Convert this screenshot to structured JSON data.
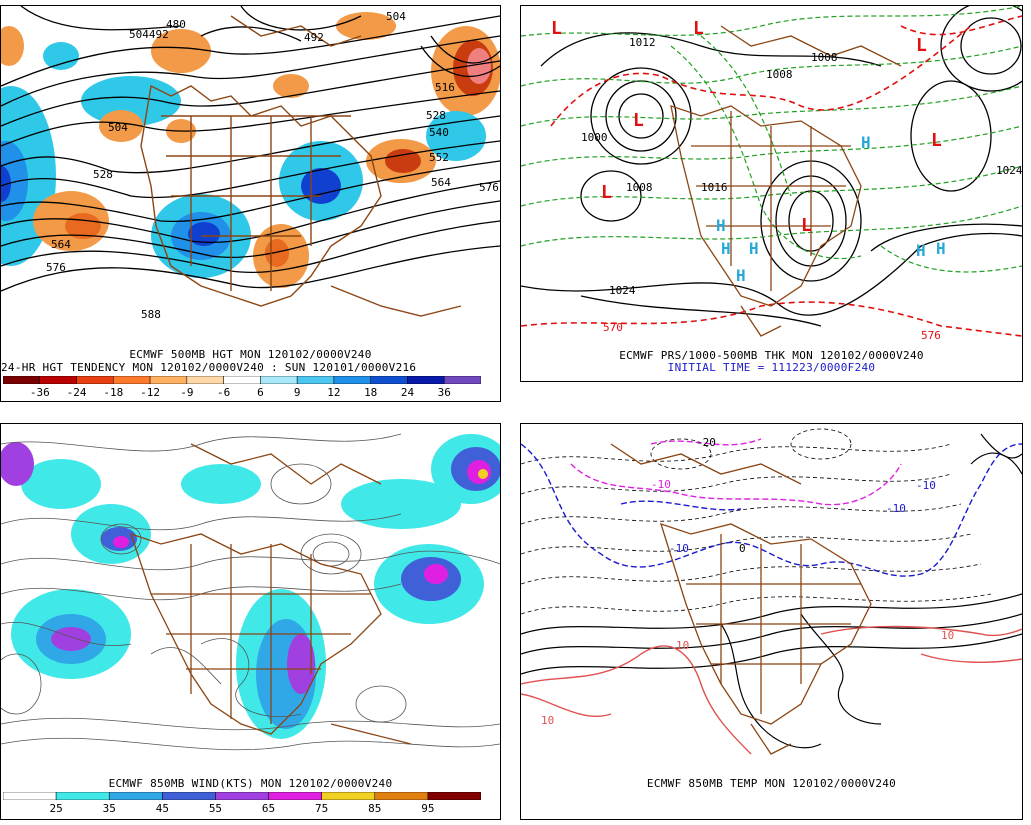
{
  "panels": [
    {
      "id": "p500",
      "captions": [
        "ECMWF 500MB HGT MON 120102/0000V240",
        "24-HR HGT TENDENCY MON 120102/0000V240 : SUN 120101/0000V216"
      ],
      "contour_labels": [
        "504492",
        "480",
        "492",
        "504",
        "516",
        "528",
        "540",
        "552",
        "564",
        "576",
        "588",
        "528",
        "564",
        "504",
        "576"
      ],
      "scale_labels": [
        "-36",
        "-24",
        "-18",
        "-12",
        "-9",
        "-6",
        "6",
        "9",
        "12",
        "18",
        "24",
        "36"
      ],
      "scale_colors": [
        "#7a0000",
        "#b80000",
        "#e84010",
        "#ff7a2c",
        "#ffb060",
        "#ffd8a8",
        "#ffffff",
        "#a8e8f8",
        "#4cc8f0",
        "#2090e8",
        "#1050d0",
        "#0818a8",
        "#7048c0"
      ],
      "colors": {
        "warm": "#f29a48",
        "warm_dark": "#c83c10",
        "cool": "#30c8e8",
        "cool_dark": "#1040d0",
        "contour": "#000000",
        "coast": "#8b4513"
      }
    },
    {
      "id": "pprs",
      "captions": [
        "ECMWF PRS/1000-500MB THK MON 120102/0000V240"
      ],
      "initial": "INITIAL TIME = 111223/0000F240",
      "labels": [
        "1012",
        "1008",
        "1000",
        "1008",
        "1016",
        "1024",
        "570",
        "1024",
        "1008",
        "576"
      ],
      "highs": [
        "H",
        "H",
        "H",
        "H",
        "H",
        "H",
        "H"
      ],
      "lows": [
        "L",
        "L",
        "L",
        "L",
        "L",
        "L",
        "L"
      ],
      "colors": {
        "high": "#28a8d8",
        "low": "#e01010",
        "thickness": "#22a022",
        "isobar": "#000000",
        "thk_red": "#e01010"
      }
    },
    {
      "id": "pwind",
      "captions": [
        "ECMWF 850MB WIND(KTS) MON 120102/0000V240"
      ],
      "scale_labels": [
        "25",
        "35",
        "45",
        "55",
        "65",
        "75",
        "85",
        "95"
      ],
      "scale_colors": [
        "#ffffff",
        "#40e8e8",
        "#30a8e8",
        "#4060d8",
        "#a040e0",
        "#e020e0",
        "#f0d020",
        "#e08010",
        "#800000"
      ],
      "colors": {
        "streamline": "#444444"
      }
    },
    {
      "id": "ptemp",
      "captions": [
        "ECMWF 850MB TEMP MON 120102/0000V240"
      ],
      "labels": [
        "-20",
        "-10",
        "-10",
        "-10",
        "0",
        "10",
        "10",
        "-10",
        "10"
      ],
      "colors": {
        "neg": "#1a1acc",
        "magenta": "#e020e0",
        "pos": "#e05050",
        "isotherm": "#000000"
      }
    }
  ]
}
